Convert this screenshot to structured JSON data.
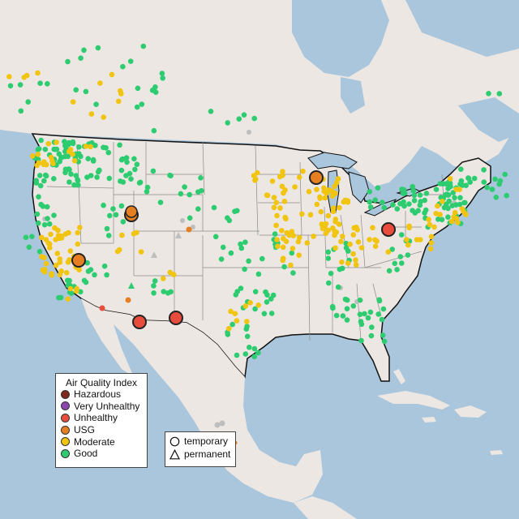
{
  "legend_aqi": {
    "title": "Air Quality Index",
    "items": [
      {
        "label": "Hazardous",
        "color": "#7e2a1e"
      },
      {
        "label": "Very Unhealthy",
        "color": "#8e44ad"
      },
      {
        "label": "Unhealthy",
        "color": "#e74c3c"
      },
      {
        "label": "USG",
        "color": "#e67e22"
      },
      {
        "label": "Moderate",
        "color": "#f1c40f"
      },
      {
        "label": "Good",
        "color": "#2ecc71"
      }
    ]
  },
  "legend_type": {
    "items": [
      {
        "label": "temporary",
        "shape": "circle"
      },
      {
        "label": "permanent",
        "shape": "triangle"
      }
    ]
  },
  "colors": {
    "water": "#a9c6dc",
    "land": "#ece7e2",
    "border": "#111111",
    "state_lines": "#8a8a8a",
    "no_data": "#bdbdbd"
  }
}
